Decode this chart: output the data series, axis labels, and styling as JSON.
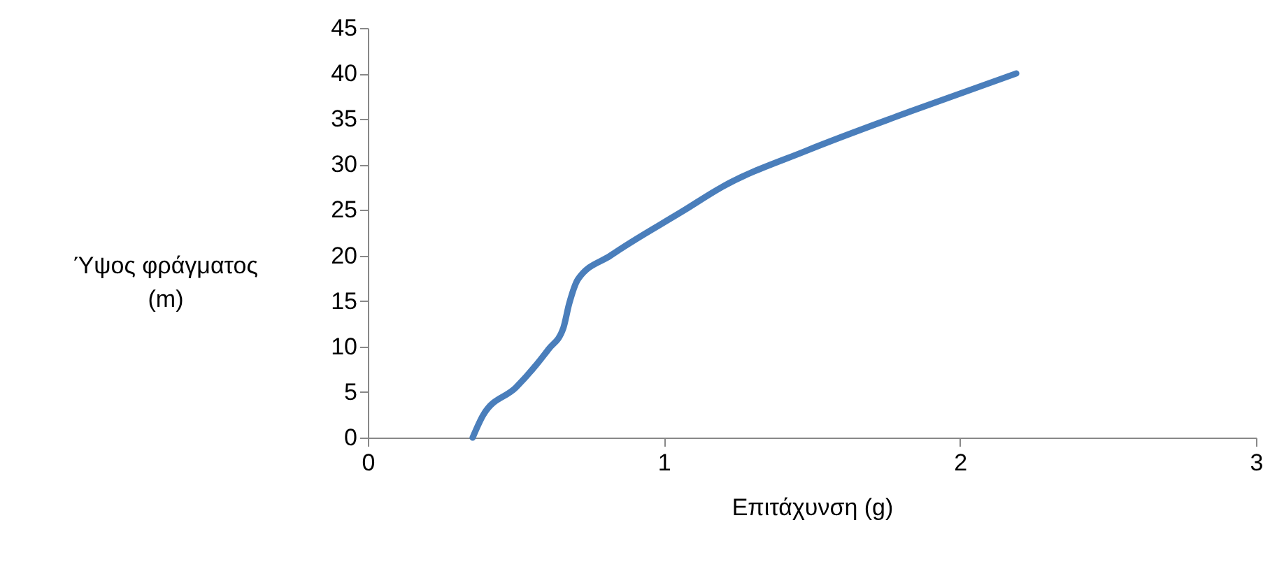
{
  "chart_data": {
    "type": "line",
    "xlabel": "Επιτάχυνση (g)",
    "ylabel": "Ύψος φράγματος (m)",
    "series": [
      {
        "color": "#4a7ebb",
        "x": [
          0.354,
          0.39,
          0.5,
          0.61,
          0.66,
          0.68,
          0.71,
          0.82,
          1.07,
          1.2,
          1.48,
          1.83,
          2.19
        ],
        "values": [
          0,
          2.5,
          5.5,
          9.7,
          12,
          14.7,
          17.4,
          20,
          25,
          27.6,
          31.5,
          35.8,
          40
        ]
      }
    ],
    "xlim": [
      0,
      3
    ],
    "xticks": [
      0,
      1,
      2,
      3
    ],
    "ylim": [
      0,
      45
    ],
    "yticks": [
      0,
      5,
      10,
      15,
      20,
      25,
      30,
      35,
      40,
      45
    ],
    "grid": false,
    "legend": false,
    "marker": "none",
    "line_style": "solid"
  }
}
